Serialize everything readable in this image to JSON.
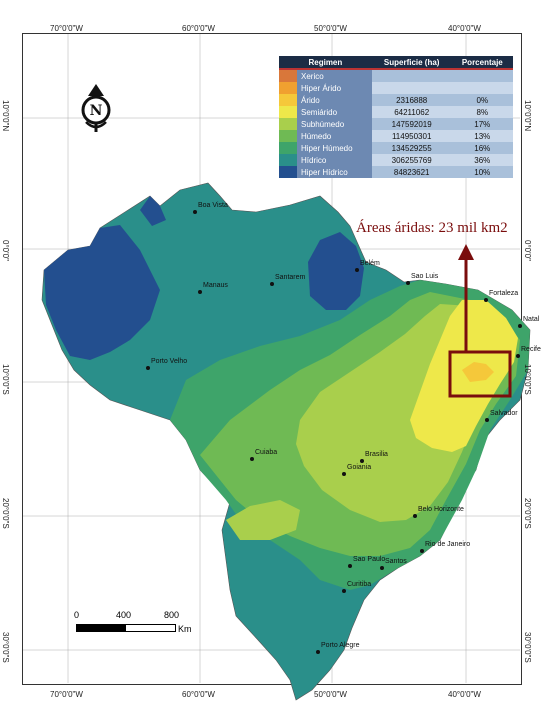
{
  "map": {
    "coords_top": [
      "70°0'0\"W",
      "60°0'0\"W",
      "50°0'0\"W",
      "40°0'0\"W"
    ],
    "coords_bottom": [
      "70°0'0\"W",
      "60°0'0\"W",
      "50°0'0\"W",
      "40°0'0\"W"
    ],
    "coords_left": [
      "10°0'0\"N",
      "0°0'0\"",
      "10°0'0\"S",
      "20°0'0\"S",
      "30°0'0\"S"
    ],
    "coords_right": [
      "10°0'0\"N",
      "0°0'0\"",
      "10°0'0\"S",
      "20°0'0\"S",
      "30°0'0\"S"
    ],
    "north_letter": "N",
    "annotation": "Áreas áridas: 23 mil km2",
    "annotation_color": "#7a0d0d",
    "scale": {
      "labels": [
        "0",
        "400",
        "800"
      ],
      "unit": "Km"
    },
    "cities": [
      "Boa Vista",
      "Manaus",
      "Santarem",
      "Belém",
      "Sao Luis",
      "Fortaleza",
      "Natal",
      "Recife",
      "Salvador",
      "Porto Velho",
      "Cuiaba",
      "Brasilia",
      "Goiania",
      "Belo Horizonte",
      "Rio de Janeiro",
      "Sao Paulo",
      "Santos",
      "Curitiba",
      "Porto Alegre"
    ]
  },
  "legend": {
    "headers": [
      "Regimen",
      "Superficie (ha)",
      "Porcentaje"
    ],
    "rows": [
      {
        "name": "Xerico",
        "superficie": "",
        "porcentaje": "",
        "color": "#d9773a"
      },
      {
        "name": "Hiper Árido",
        "superficie": "",
        "porcentaje": "",
        "color": "#f0a030"
      },
      {
        "name": "Árido",
        "superficie": "2316888",
        "porcentaje": "0%",
        "color": "#f5c83a"
      },
      {
        "name": "Semiárido",
        "superficie": "64211062",
        "porcentaje": "8%",
        "color": "#eee84a"
      },
      {
        "name": "Subhúmedo",
        "superficie": "147592019",
        "porcentaje": "17%",
        "color": "#a9cf4c"
      },
      {
        "name": "Húmedo",
        "superficie": "114950301",
        "porcentaje": "13%",
        "color": "#6fba54"
      },
      {
        "name": "Hiper Húmedo",
        "superficie": "134529255",
        "porcentaje": "16%",
        "color": "#3ea46a"
      },
      {
        "name": "Hídrico",
        "superficie": "306255769",
        "porcentaje": "36%",
        "color": "#2a8f8a"
      },
      {
        "name": "Hiper Hídrico",
        "superficie": "84823621",
        "porcentaje": "10%",
        "color": "#234f8f"
      }
    ]
  }
}
